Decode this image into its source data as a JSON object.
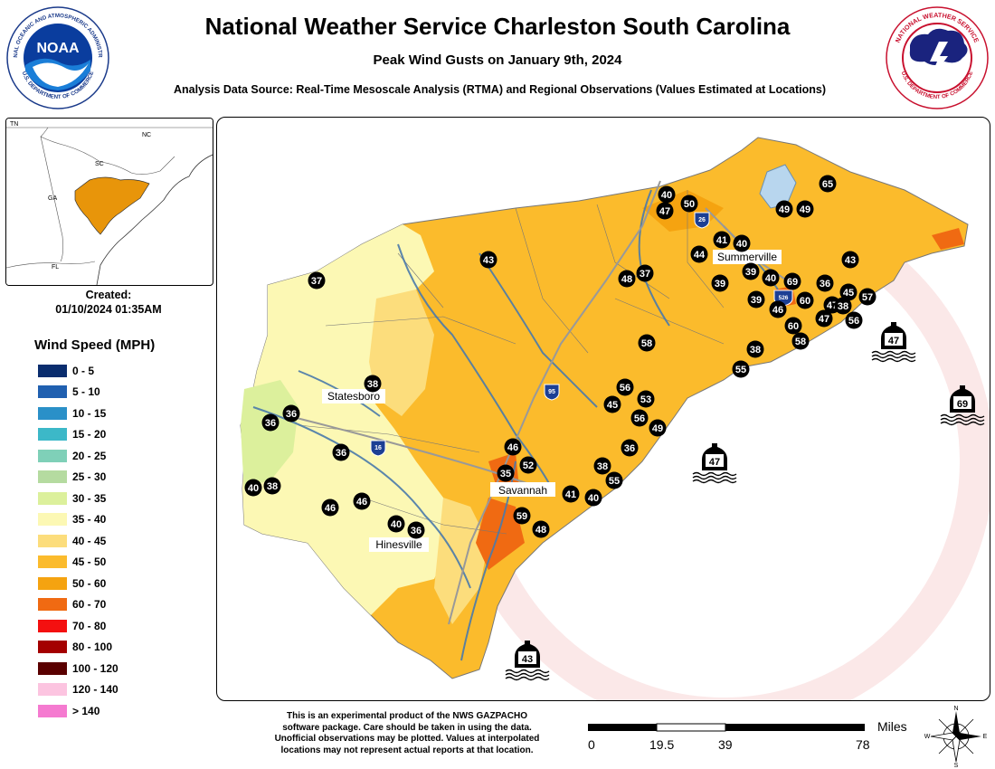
{
  "header": {
    "title": "National Weather Service Charleston South Carolina",
    "subtitle": "Peak Wind Gusts on January 9th, 2024",
    "source": "Analysis Data Source: Real-Time Mesoscale Analysis (RTMA) and Regional Observations (Values Estimated at Locations)"
  },
  "logos": {
    "noaa_text": "NOAA",
    "noaa_ring": "NATIONAL OCEANIC AND ATMOSPHERIC ADMINISTRATION",
    "noaa_ring_bottom": "U.S. DEPARTMENT OF COMMERCE",
    "nws_ring": "NATIONAL WEATHER SERVICE",
    "nws_ring_bottom": "U.S. DEPARTMENT OF COMMERCE"
  },
  "inset": {
    "labels": [
      "TN",
      "NC",
      "SC",
      "GA",
      "FL"
    ],
    "highlight_color": "#e8950a"
  },
  "created": {
    "label": "Created:",
    "value": "01/10/2024 01:35AM"
  },
  "legend": {
    "title": "Wind Speed (MPH)",
    "items": [
      {
        "label": "0 - 5",
        "color": "#0a2d6e"
      },
      {
        "label": "5 - 10",
        "color": "#2060b0"
      },
      {
        "label": "10 - 15",
        "color": "#2a90c8"
      },
      {
        "label": "15 - 20",
        "color": "#3cb8c8"
      },
      {
        "label": "20 - 25",
        "color": "#7fd0b8"
      },
      {
        "label": "25 - 30",
        "color": "#b5dba0"
      },
      {
        "label": "30 - 35",
        "color": "#dcf09c"
      },
      {
        "label": "35 - 40",
        "color": "#fcf8b4"
      },
      {
        "label": "40 - 45",
        "color": "#fcdd7c"
      },
      {
        "label": "45 - 50",
        "color": "#fbbb2c"
      },
      {
        "label": "50 - 60",
        "color": "#f5a310"
      },
      {
        "label": "60 - 70",
        "color": "#f06a12"
      },
      {
        "label": "70 - 80",
        "color": "#f41010"
      },
      {
        "label": "80 - 100",
        "color": "#a40000"
      },
      {
        "label": "100 - 120",
        "color": "#5a0000"
      },
      {
        "label": "120 - 140",
        "color": "#fcc4e0"
      },
      {
        "label": "> 140",
        "color": "#f57ad0"
      }
    ]
  },
  "cities": [
    "Summerville",
    "Statesboro",
    "Savannah",
    "Hinesville"
  ],
  "interstates": [
    "26",
    "526",
    "95",
    "16"
  ],
  "stations": [
    "37",
    "43",
    "48",
    "37",
    "40",
    "50",
    "47",
    "41",
    "40",
    "44",
    "65",
    "49",
    "49",
    "39",
    "40",
    "39",
    "69",
    "39",
    "36",
    "43",
    "46",
    "60",
    "47",
    "38",
    "45",
    "57",
    "60",
    "47",
    "56",
    "58",
    "38",
    "55",
    "58",
    "38",
    "36",
    "36",
    "56",
    "45",
    "53",
    "56",
    "49",
    "36",
    "36",
    "46",
    "46",
    "52",
    "35",
    "38",
    "55",
    "41",
    "40",
    "40",
    "38",
    "46",
    "40",
    "36",
    "59",
    "48"
  ],
  "buoys": [
    "47",
    "69",
    "47",
    "43"
  ],
  "disclaimer": [
    "This is an experimental product of the NWS GAZPACHO",
    "software package. Care should be taken in using the data.",
    "Unofficial observations may be plotted. Values at interpolated",
    "locations may not represent actual reports at that location."
  ],
  "scale": {
    "unit": "Miles",
    "ticks": [
      "0",
      "19.5",
      "39",
      "78"
    ]
  },
  "compass": [
    "N",
    "E",
    "S",
    "W"
  ]
}
